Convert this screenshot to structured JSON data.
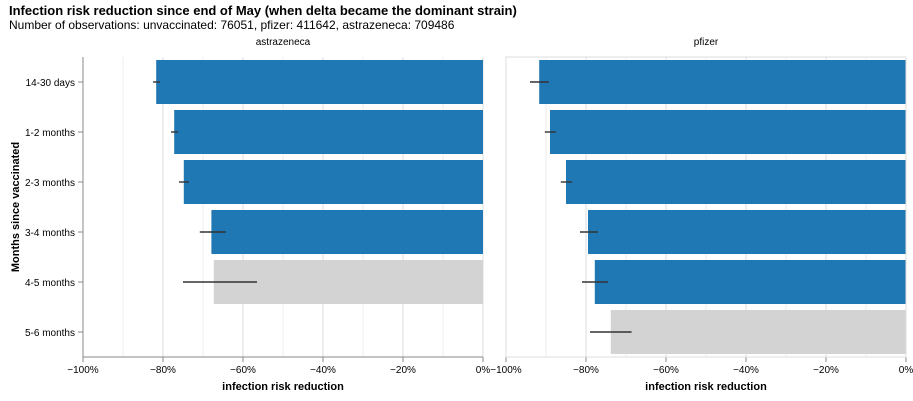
{
  "title": "Infection risk reduction since end of May (when delta became the dominant strain)",
  "subtitle": "Number of observations: unvaccinated: 76051, pfizer: 411642, astrazeneca: 709486",
  "colors": {
    "bar": "#1f77b4",
    "bar_muted": "#d3d3d3",
    "error": "#333333",
    "grid": "#dddddd",
    "axis": "#888888"
  },
  "chart_data": {
    "type": "bar",
    "orientation": "horizontal",
    "ylabel": "Months since vaccinated",
    "xlabel": "infection risk reduction",
    "xlim": [
      -100,
      0
    ],
    "x_ticks": [
      "−100%",
      "−80%",
      "−60%",
      "−40%",
      "−20%",
      "0%"
    ],
    "categories": [
      "14-30 days",
      "1-2 months",
      "2-3 months",
      "3-4 months",
      "4-5 months",
      "5-6 months"
    ],
    "grid": true,
    "panels": [
      {
        "name": "astrazeneca",
        "bars": [
          {
            "category": "14-30 days",
            "value": -81.7,
            "err_low": -82.5,
            "err_high": -80.7,
            "muted": false
          },
          {
            "category": "1-2 months",
            "value": -77.2,
            "err_low": -78.0,
            "err_high": -76.2,
            "muted": false
          },
          {
            "category": "2-3 months",
            "value": -74.8,
            "err_low": -76.0,
            "err_high": -73.5,
            "muted": false
          },
          {
            "category": "3-4 months",
            "value": -67.9,
            "err_low": -70.8,
            "err_high": -64.3,
            "muted": false
          },
          {
            "category": "4-5 months",
            "value": -67.3,
            "err_low": -75.0,
            "err_high": -56.5,
            "muted": true
          }
        ]
      },
      {
        "name": "pfizer",
        "bars": [
          {
            "category": "14-30 days",
            "value": -91.7,
            "err_low": -94.0,
            "err_high": -89.3,
            "muted": false
          },
          {
            "category": "1-2 months",
            "value": -89.0,
            "err_low": -90.3,
            "err_high": -87.5,
            "muted": false
          },
          {
            "category": "2-3 months",
            "value": -85.0,
            "err_low": -86.3,
            "err_high": -83.5,
            "muted": false
          },
          {
            "category": "3-4 months",
            "value": -79.5,
            "err_low": -81.5,
            "err_high": -77.0,
            "muted": false
          },
          {
            "category": "4-5 months",
            "value": -77.8,
            "err_low": -81.0,
            "err_high": -74.5,
            "muted": false
          },
          {
            "category": "5-6 months",
            "value": -73.8,
            "err_low": -79.0,
            "err_high": -68.6,
            "muted": true
          }
        ]
      }
    ]
  }
}
